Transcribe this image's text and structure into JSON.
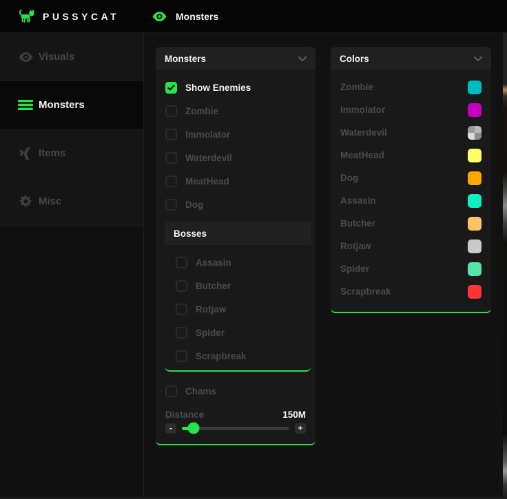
{
  "accent": "#27e24a",
  "topbar": {
    "brand": "PUSSYCAT",
    "page_title": "Monsters"
  },
  "sidebar": {
    "items": [
      {
        "label": "Visuals",
        "icon": "eye-icon",
        "active": false
      },
      {
        "label": "Monsters",
        "icon": "menu-icon",
        "active": true
      },
      {
        "label": "Items",
        "icon": "items-icon",
        "active": false
      },
      {
        "label": "Misc",
        "icon": "gear-icon",
        "active": false
      }
    ]
  },
  "monsters_panel": {
    "title": "Monsters",
    "show_enemies_label": "Show Enemies",
    "show_enemies_checked": true,
    "monsters": [
      "Zombie",
      "Immolator",
      "Waterdevil",
      "MeatHead",
      "Dog"
    ],
    "bosses_title": "Bosses",
    "bosses": [
      "Assasin",
      "Butcher",
      "Rotjaw",
      "Spider",
      "Scrapbreak"
    ],
    "chams_label": "Chams",
    "distance": {
      "label": "Distance",
      "value": "150M",
      "minus_label": "-",
      "plus_label": "+",
      "fill_percent": 11
    }
  },
  "colors_panel": {
    "title": "Colors",
    "rows": [
      {
        "label": "Zombie",
        "color": "#00bdbd"
      },
      {
        "label": "Immolator",
        "color": "#c400c4"
      },
      {
        "label": "Waterdevil",
        "color": "checker"
      },
      {
        "label": "MeatHead",
        "color": "#ffff66"
      },
      {
        "label": "Dog",
        "color": "#ffa500"
      },
      {
        "label": "Assasin",
        "color": "#0df0c0"
      },
      {
        "label": "Butcher",
        "color": "#ffc266"
      },
      {
        "label": "Rotjaw",
        "color": "#c9c9c9"
      },
      {
        "label": "Spider",
        "color": "#55e5a3"
      },
      {
        "label": "Scrapbreak",
        "color": "#ff3434"
      }
    ]
  }
}
